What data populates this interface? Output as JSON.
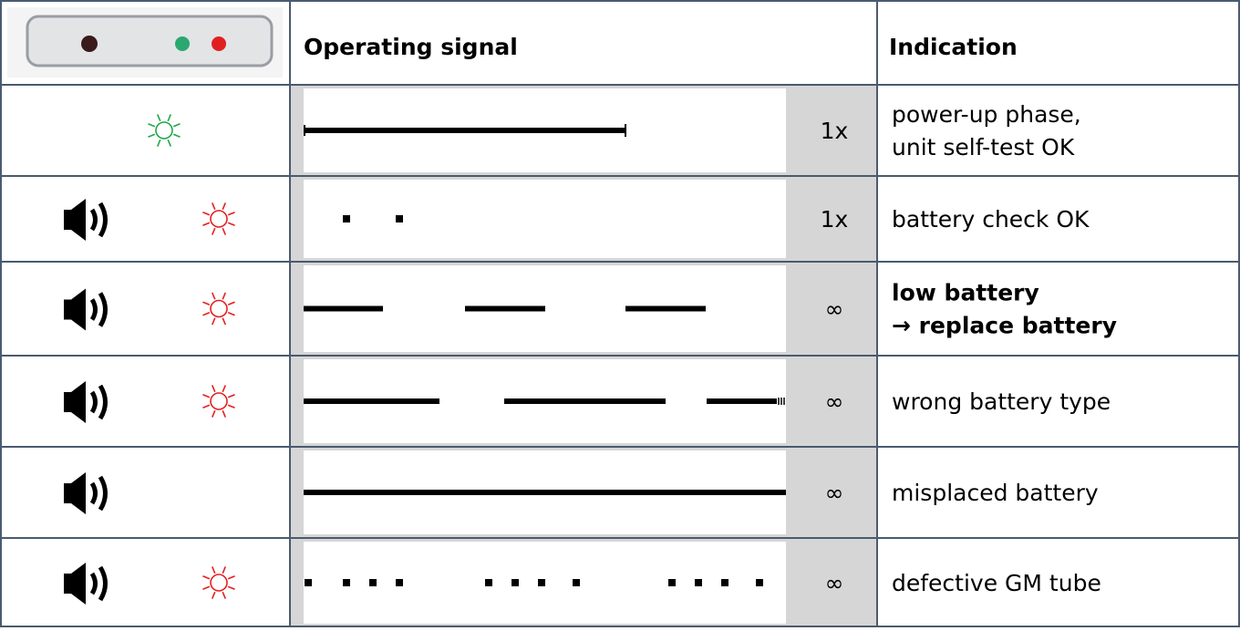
{
  "header": {
    "signal": "Operating signal",
    "indication": "Indication"
  },
  "rows": [
    {
      "count": "1x",
      "indication": [
        "power-up phase,",
        "unit self-test OK"
      ]
    },
    {
      "count": "1x",
      "indication": [
        "battery check OK"
      ]
    },
    {
      "count": "∞",
      "indication": [
        "low battery",
        "→ replace battery"
      ]
    },
    {
      "count": "∞",
      "indication": [
        "wrong battery type"
      ]
    },
    {
      "count": "∞",
      "indication": [
        "misplaced battery"
      ]
    },
    {
      "count": "∞",
      "indication": [
        "defective GM tube"
      ]
    }
  ]
}
